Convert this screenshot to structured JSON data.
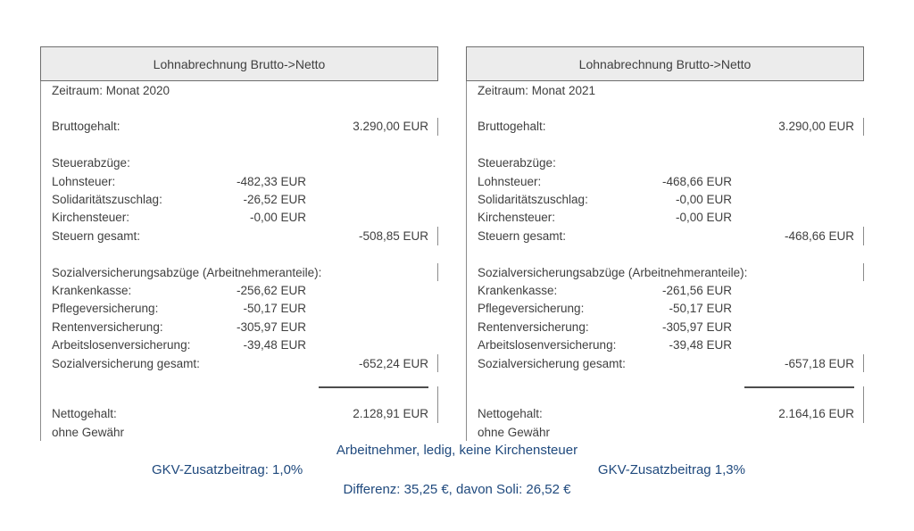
{
  "colors": {
    "note_text": "#1f497d",
    "header_bg": "#ececec",
    "panel_border": "#8c8c8c",
    "body_text": "#3f3f3f",
    "page_bg": "#ffffff"
  },
  "panels": [
    {
      "title": "Lohnabrechnung Brutto->Netto",
      "period": "Zeitraum: Monat 2020",
      "rows": [
        {
          "blank": true
        },
        {
          "label": "Bruttogehalt:",
          "total": "3.290,00 EUR",
          "tick": true
        },
        {
          "blank": true
        },
        {
          "label": "Steuerabzüge:"
        },
        {
          "label": "Lohnsteuer:",
          "mid": "-482,33 EUR"
        },
        {
          "label": "Solidaritätszuschlag:",
          "mid": "-26,52 EUR"
        },
        {
          "label": "Kirchensteuer:",
          "mid": "-0,00 EUR"
        },
        {
          "label": "Steuern gesamt:",
          "total": "-508,85 EUR",
          "tick": true
        },
        {
          "blank": true
        },
        {
          "label": "Sozialversicherungsabzüge (Arbeitnehmeranteile):",
          "tick": true
        },
        {
          "label": "Krankenkasse:",
          "mid": "-256,62 EUR"
        },
        {
          "label": "Pflegeversicherung:",
          "mid": "-50,17 EUR"
        },
        {
          "label": "Rentenversicherung:",
          "mid": "-305,97 EUR"
        },
        {
          "label": "Arbeitslosenversicherung:",
          "mid": "-39,48 EUR"
        },
        {
          "label": "Sozialversicherung gesamt:",
          "total": "-652,24 EUR",
          "tick": true
        },
        {
          "rule": true,
          "tick": true
        },
        {
          "label": "Nettogehalt:",
          "total": "2.128,91 EUR",
          "tick": true
        },
        {
          "label": "ohne Gewähr"
        }
      ]
    },
    {
      "title": "Lohnabrechnung Brutto->Netto",
      "period": "Zeitraum: Monat 2021",
      "rows": [
        {
          "blank": true
        },
        {
          "label": "Bruttogehalt:",
          "total": "3.290,00 EUR",
          "tick": true
        },
        {
          "blank": true
        },
        {
          "label": "Steuerabzüge:"
        },
        {
          "label": "Lohnsteuer:",
          "mid": "-468,66 EUR"
        },
        {
          "label": "Solidaritätszuschlag:",
          "mid": "-0,00 EUR"
        },
        {
          "label": "Kirchensteuer:",
          "mid": "-0,00 EUR"
        },
        {
          "label": "Steuern gesamt:",
          "total": "-468,66 EUR",
          "tick": true
        },
        {
          "blank": true
        },
        {
          "label": "Sozialversicherungsabzüge (Arbeitnehmeranteile):",
          "tick": true
        },
        {
          "label": "Krankenkasse:",
          "mid": "-261,56 EUR"
        },
        {
          "label": "Pflegeversicherung:",
          "mid": "-50,17 EUR"
        },
        {
          "label": "Rentenversicherung:",
          "mid": "-305,97 EUR"
        },
        {
          "label": "Arbeitslosenversicherung:",
          "mid": "-39,48 EUR"
        },
        {
          "label": "Sozialversicherung gesamt:",
          "total": "-657,18 EUR",
          "tick": true
        },
        {
          "rule": true,
          "tick": true
        },
        {
          "label": "Nettogehalt:",
          "total": "2.164,16 EUR",
          "tick": true
        },
        {
          "label": "ohne Gewähr"
        }
      ]
    }
  ],
  "notes": {
    "line1": "Arbeitnehmer, ledig, keine Kirchensteuer",
    "line2_left": "GKV-Zusatzbeitrag: 1,0%",
    "line2_right": "GKV-Zusatzbeitrag 1,3%",
    "line3": "Differenz: 35,25 €, davon Soli: 26,52 €"
  }
}
